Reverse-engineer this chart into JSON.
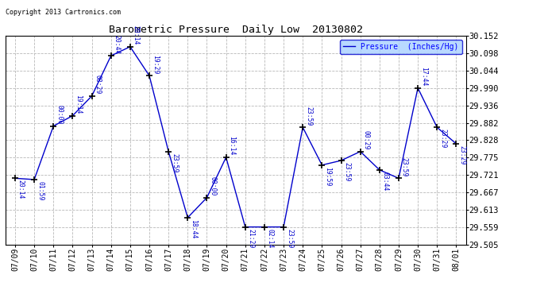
{
  "title": "Barometric Pressure  Daily Low  20130802",
  "copyright": "Copyright 2013 Cartronics.com",
  "legend_label": "Pressure  (Inches/Hg)",
  "background_color": "#ffffff",
  "plot_bg_color": "#ffffff",
  "grid_color": "#b8b8b8",
  "line_color": "#0000cc",
  "marker_color": "#000000",
  "label_color": "#0000cc",
  "legend_bg": "#a8d0ff",
  "legend_edge": "#0000cc",
  "ylim_low": 29.505,
  "ylim_high": 30.152,
  "yticks": [
    29.505,
    29.559,
    29.613,
    29.667,
    29.721,
    29.775,
    29.828,
    29.882,
    29.936,
    29.99,
    30.044,
    30.098,
    30.152
  ],
  "dates": [
    "07/09",
    "07/10",
    "07/11",
    "07/12",
    "07/13",
    "07/14",
    "07/15",
    "07/16",
    "07/17",
    "07/18",
    "07/19",
    "07/20",
    "07/21",
    "07/22",
    "07/23",
    "07/24",
    "07/25",
    "07/26",
    "07/27",
    "07/28",
    "07/29",
    "07/30",
    "07/31",
    "08/01"
  ],
  "values": [
    29.71,
    29.706,
    29.872,
    29.904,
    29.965,
    30.09,
    30.118,
    30.028,
    29.793,
    29.588,
    29.65,
    29.775,
    29.559,
    29.559,
    29.559,
    29.868,
    29.751,
    29.765,
    29.793,
    29.736,
    29.71,
    29.99,
    29.868,
    29.817
  ],
  "time_labels": [
    "20:14",
    "01:59",
    "00:00",
    "19:14",
    "08:29",
    "20:44",
    "20:14",
    "19:29",
    "23:59",
    "18:44",
    "00:00",
    "16:14",
    "21:29",
    "02:14",
    "23:59",
    "23:59",
    "19:59",
    "23:59",
    "00:29",
    "03:44",
    "23:59",
    "17:44",
    "23:29",
    "23:29"
  ],
  "label_above": [
    false,
    false,
    true,
    true,
    true,
    true,
    true,
    true,
    false,
    false,
    true,
    true,
    false,
    false,
    false,
    true,
    false,
    false,
    true,
    false,
    true,
    true,
    false,
    false
  ]
}
